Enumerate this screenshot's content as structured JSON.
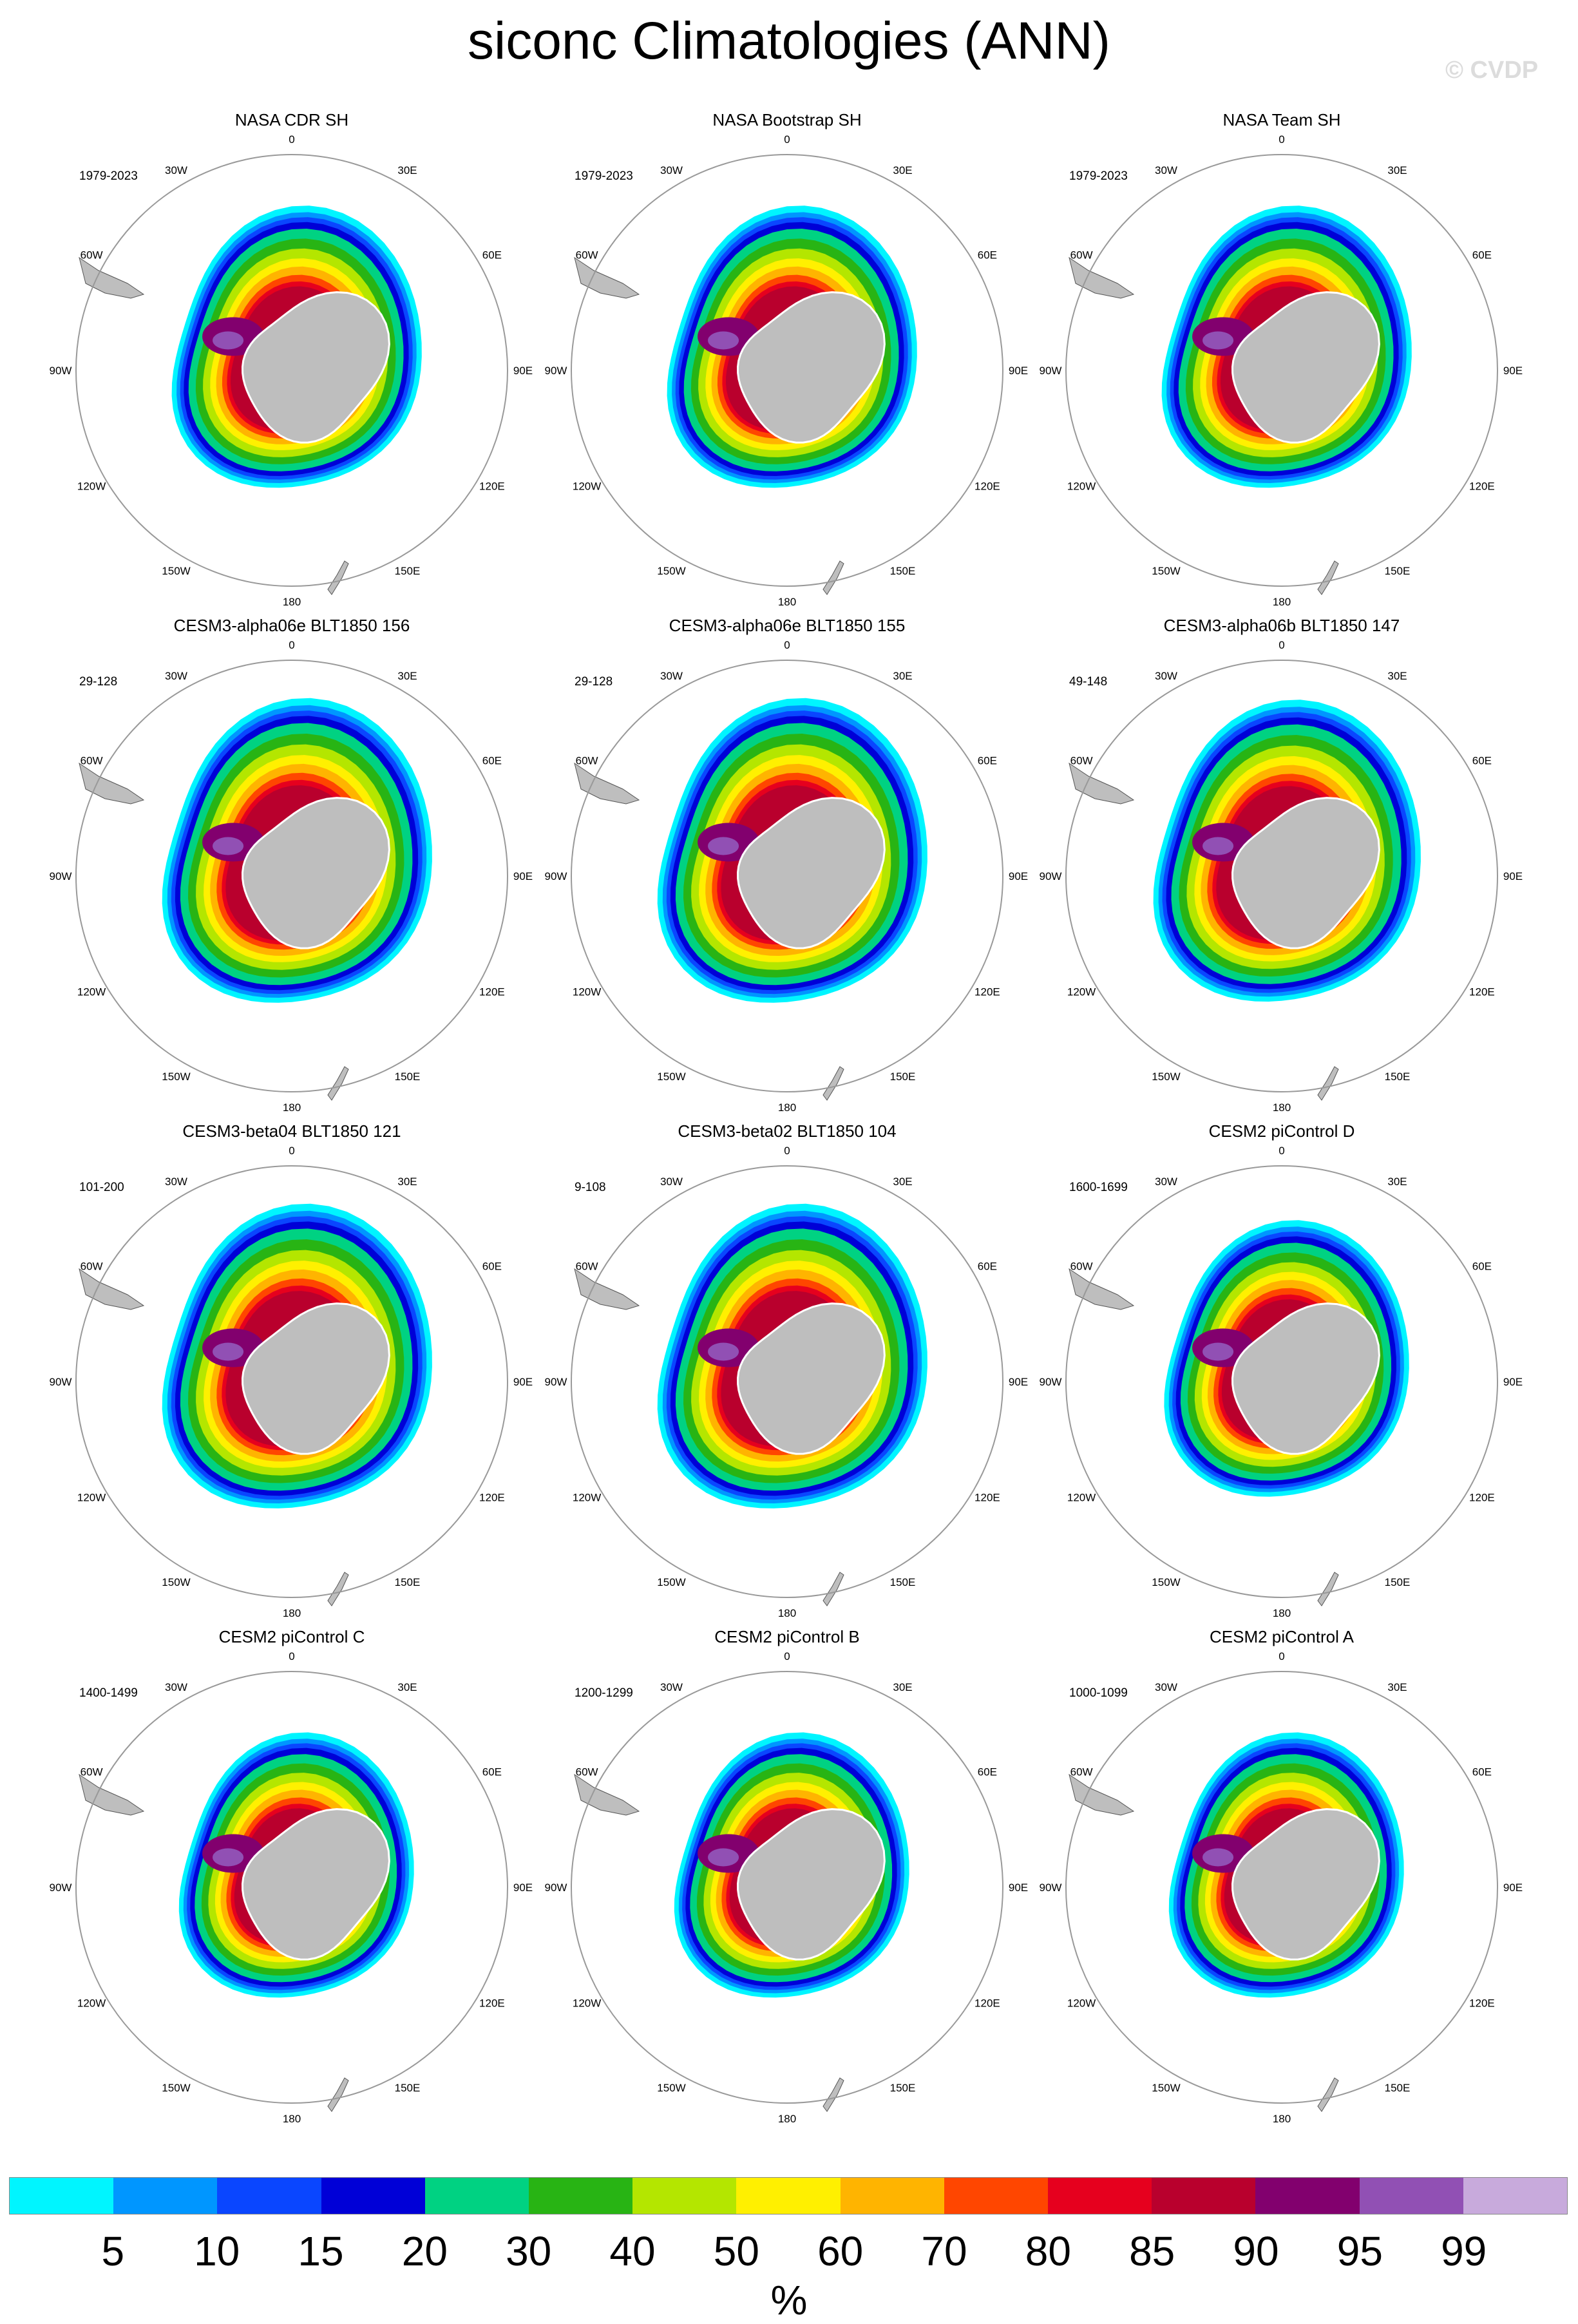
{
  "title": "siconc Climatologies (ANN)",
  "watermark": "© CVDP",
  "longitude_labels": [
    "0",
    "30E",
    "60E",
    "90E",
    "120E",
    "150E",
    "180",
    "150W",
    "120W",
    "90W",
    "60W",
    "30W"
  ],
  "panels": [
    {
      "title": "NASA CDR SH",
      "period": "1979-2023"
    },
    {
      "title": "NASA Bootstrap SH",
      "period": "1979-2023"
    },
    {
      "title": "NASA Team SH",
      "period": "1979-2023"
    },
    {
      "title": "CESM3-alpha06e BLT1850 156",
      "period": "29-128"
    },
    {
      "title": "CESM3-alpha06e BLT1850 155",
      "period": "29-128"
    },
    {
      "title": "CESM3-alpha06b BLT1850 147",
      "period": "49-148"
    },
    {
      "title": "CESM3-beta04 BLT1850 121",
      "period": "101-200"
    },
    {
      "title": "CESM3-beta02 BLT1850 104",
      "period": "9-108"
    },
    {
      "title": "CESM2 piControl D",
      "period": "1600-1699"
    },
    {
      "title": "CESM2 piControl C",
      "period": "1400-1499"
    },
    {
      "title": "CESM2 piControl B",
      "period": "1200-1299"
    },
    {
      "title": "CESM2 piControl A",
      "period": "1000-1099"
    }
  ],
  "colorbar": {
    "labels": [
      "5",
      "10",
      "15",
      "20",
      "30",
      "40",
      "50",
      "60",
      "70",
      "80",
      "85",
      "90",
      "95",
      "99"
    ],
    "colors": [
      "#00f5ff",
      "#0096ff",
      "#0a46ff",
      "#0000d7",
      "#00d282",
      "#28b414",
      "#b4e600",
      "#fff000",
      "#ffb400",
      "#ff4600",
      "#e6001e",
      "#b9002d",
      "#82006e",
      "#9150b4",
      "#c8aadc"
    ],
    "units": "%"
  },
  "colors": {
    "land": "#bebebe",
    "circle": "#999999"
  }
}
